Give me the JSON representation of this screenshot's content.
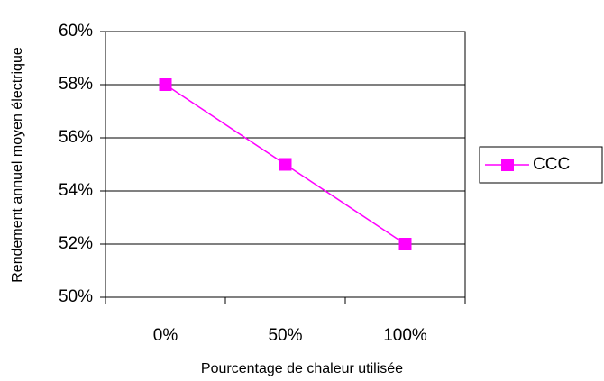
{
  "chart_data": {
    "type": "line",
    "x_label": "Pourcentage de chaleur utilisée",
    "y_label": "Rendement annuel moyen électrique",
    "categories": [
      "0%",
      "50%",
      "100%"
    ],
    "series": [
      {
        "name": "CCC",
        "color": "#ff00ff",
        "values": [
          58,
          55,
          52
        ]
      }
    ],
    "ylim": [
      50,
      60
    ],
    "yticks": [
      {
        "value": 50,
        "label": "50%"
      },
      {
        "value": 52,
        "label": "52%"
      },
      {
        "value": 54,
        "label": "54%"
      },
      {
        "value": 56,
        "label": "56%"
      },
      {
        "value": 58,
        "label": "58%"
      },
      {
        "value": 60,
        "label": "60%"
      }
    ],
    "grid": true,
    "legend": "right"
  }
}
